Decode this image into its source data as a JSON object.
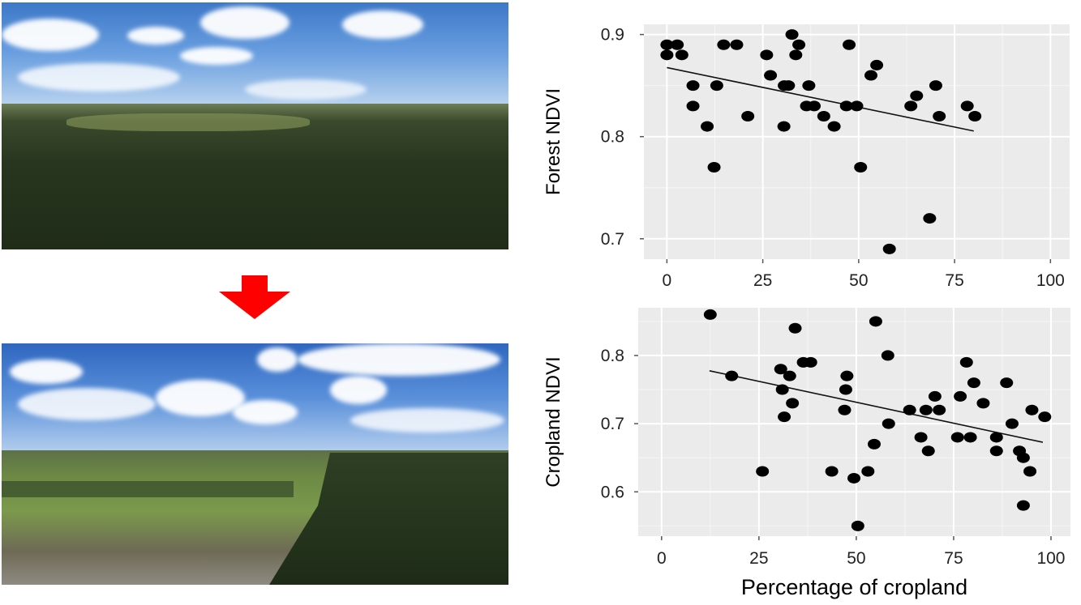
{
  "figure": {
    "photos": [
      {
        "name": "forest-landscape-before"
      },
      {
        "name": "cropland-landscape-after"
      }
    ],
    "arrow_color": "#ff0000"
  },
  "chart_data": [
    {
      "type": "scatter",
      "title": "",
      "xlabel": "",
      "ylabel": "Forest NDVI",
      "xlim": [
        -6,
        105
      ],
      "ylim": [
        0.68,
        0.91
      ],
      "xticks": [
        0,
        25,
        50,
        75,
        100
      ],
      "xtick_labels": [
        "0",
        "25",
        "50",
        "75",
        "100"
      ],
      "yticks": [
        0.7,
        0.8,
        0.9
      ],
      "ytick_labels": [
        "0.7",
        "0.8",
        "0.9"
      ],
      "grid": true,
      "points": [
        [
          0,
          0.89
        ],
        [
          0,
          0.88
        ],
        [
          2.7,
          0.89
        ],
        [
          3.9,
          0.88
        ],
        [
          6.8,
          0.85
        ],
        [
          6.8,
          0.83
        ],
        [
          10.5,
          0.81
        ],
        [
          12.3,
          0.77
        ],
        [
          13,
          0.85
        ],
        [
          14.8,
          0.89
        ],
        [
          18.2,
          0.89
        ],
        [
          21.1,
          0.82
        ],
        [
          26,
          0.88
        ],
        [
          27,
          0.86
        ],
        [
          30.5,
          0.81
        ],
        [
          30.6,
          0.85
        ],
        [
          31.7,
          0.85
        ],
        [
          32.6,
          0.9
        ],
        [
          33.6,
          0.88
        ],
        [
          34.4,
          0.89
        ],
        [
          37,
          0.85
        ],
        [
          36.4,
          0.83
        ],
        [
          38.4,
          0.83
        ],
        [
          40.9,
          0.82
        ],
        [
          43.6,
          0.81
        ],
        [
          46.8,
          0.83
        ],
        [
          47.5,
          0.89
        ],
        [
          49.5,
          0.83
        ],
        [
          50.5,
          0.77
        ],
        [
          53.2,
          0.86
        ],
        [
          54.7,
          0.87
        ],
        [
          58,
          0.69
        ],
        [
          63.6,
          0.83
        ],
        [
          65.1,
          0.84
        ],
        [
          68.5,
          0.72
        ],
        [
          70.1,
          0.85
        ],
        [
          71,
          0.82
        ],
        [
          78.3,
          0.83
        ],
        [
          80.3,
          0.82
        ]
      ],
      "fit_line": [
        [
          0,
          0.8676
        ],
        [
          80,
          0.8055
        ]
      ]
    },
    {
      "type": "scatter",
      "title": "",
      "xlabel": "Percentage of cropland",
      "ylabel": "Cropland NDVI",
      "xlim": [
        -6,
        105
      ],
      "ylim": [
        0.535,
        0.87
      ],
      "xticks": [
        0,
        25,
        50,
        75,
        100
      ],
      "xtick_labels": [
        "0",
        "25",
        "50",
        "75",
        "100"
      ],
      "yticks": [
        0.6,
        0.7,
        0.8
      ],
      "ytick_labels": [
        "0.6",
        "0.7",
        "0.8"
      ],
      "grid": true,
      "points": [
        [
          12.5,
          0.86
        ],
        [
          18,
          0.77
        ],
        [
          25.9,
          0.63
        ],
        [
          30.6,
          0.78
        ],
        [
          31,
          0.75
        ],
        [
          31.5,
          0.71
        ],
        [
          32.9,
          0.77
        ],
        [
          33.6,
          0.73
        ],
        [
          34.3,
          0.84
        ],
        [
          36.4,
          0.79
        ],
        [
          38.3,
          0.79
        ],
        [
          43.7,
          0.63
        ],
        [
          47,
          0.72
        ],
        [
          47.3,
          0.75
        ],
        [
          47.6,
          0.77
        ],
        [
          49.4,
          0.62
        ],
        [
          50.4,
          0.55
        ],
        [
          53,
          0.63
        ],
        [
          54.6,
          0.67
        ],
        [
          55,
          0.85
        ],
        [
          58.1,
          0.8
        ],
        [
          58.3,
          0.7
        ],
        [
          63.7,
          0.72
        ],
        [
          66.6,
          0.68
        ],
        [
          67.9,
          0.72
        ],
        [
          68.5,
          0.66
        ],
        [
          70.2,
          0.74
        ],
        [
          71.3,
          0.72
        ],
        [
          76,
          0.68
        ],
        [
          76.7,
          0.74
        ],
        [
          78.3,
          0.79
        ],
        [
          79.3,
          0.68
        ],
        [
          80.2,
          0.76
        ],
        [
          82.6,
          0.73
        ],
        [
          86,
          0.68
        ],
        [
          86,
          0.66
        ],
        [
          88.6,
          0.76
        ],
        [
          90,
          0.7
        ],
        [
          91.9,
          0.66
        ],
        [
          92.9,
          0.65
        ],
        [
          92.9,
          0.58
        ],
        [
          94.6,
          0.63
        ],
        [
          95.1,
          0.72
        ],
        [
          98.4,
          0.71
        ]
      ],
      "fit_line": [
        [
          12.3,
          0.7776
        ],
        [
          97.9,
          0.6727
        ]
      ]
    }
  ]
}
